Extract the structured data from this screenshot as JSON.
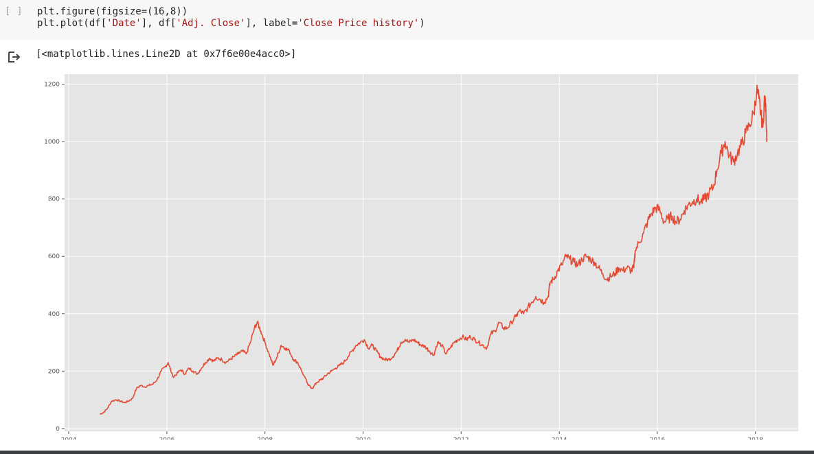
{
  "cell": {
    "brackets": "[ ]",
    "code_line1": "plt.figure(figsize=(16,8))",
    "code_line2_prefix": "plt.plot(df[",
    "code_line2_str1": "'Date'",
    "code_line2_mid1": "], df[",
    "code_line2_str2": "'Adj. Close'",
    "code_line2_mid2": "], label=",
    "code_line2_str3": "'Close Price history'",
    "code_line2_suffix": ")",
    "output_icon": "output-arrow-icon",
    "output_text": "[<matplotlib.lines.Line2D at 0x7f6e00e4acc0>]"
  },
  "colors": {
    "line": "#e24a33",
    "plot_background": "#e5e5e5",
    "grid": "#ffffff",
    "code_string": "#a31515"
  },
  "chart_data": {
    "type": "line",
    "title": "",
    "xlabel": "",
    "ylabel": "",
    "grid": true,
    "xlim": [
      "2003-12-01",
      "2018-11-15"
    ],
    "ylim": [
      -10,
      1235
    ],
    "x_ticks": [
      "2004",
      "2006",
      "2008",
      "2010",
      "2012",
      "2014",
      "2016",
      "2018"
    ],
    "y_ticks": [
      0,
      200,
      400,
      600,
      800,
      1000,
      1200
    ],
    "series": [
      {
        "x": [
          "2004-08-19",
          "2004-09-15",
          "2004-10-15",
          "2004-11-15",
          "2004-12-20",
          "2005-01-20",
          "2005-02-20",
          "2005-03-20",
          "2005-04-20",
          "2005-05-20",
          "2005-06-20",
          "2005-07-20",
          "2005-08-20",
          "2005-09-20",
          "2005-10-20",
          "2005-11-20",
          "2005-12-20",
          "2006-01-10",
          "2006-02-15",
          "2006-03-15",
          "2006-04-15",
          "2006-05-15",
          "2006-06-15",
          "2006-07-15",
          "2006-08-15",
          "2006-09-15",
          "2006-10-15",
          "2006-11-15",
          "2006-12-15",
          "2007-01-15",
          "2007-02-15",
          "2007-03-15",
          "2007-04-15",
          "2007-05-15",
          "2007-06-15",
          "2007-07-15",
          "2007-08-15",
          "2007-09-15",
          "2007-10-15",
          "2007-11-05",
          "2007-12-01",
          "2008-01-01",
          "2008-02-01",
          "2008-03-01",
          "2008-04-01",
          "2008-05-01",
          "2008-06-01",
          "2008-07-01",
          "2008-08-01",
          "2008-09-01",
          "2008-10-01",
          "2008-11-20",
          "2008-12-20",
          "2009-01-20",
          "2009-02-20",
          "2009-03-10",
          "2009-04-10",
          "2009-05-10",
          "2009-06-10",
          "2009-07-10",
          "2009-08-10",
          "2009-09-10",
          "2009-10-10",
          "2009-11-10",
          "2009-12-10",
          "2010-01-10",
          "2010-02-10",
          "2010-03-10",
          "2010-04-10",
          "2010-05-10",
          "2010-06-10",
          "2010-07-10",
          "2010-08-10",
          "2010-09-10",
          "2010-10-10",
          "2010-11-10",
          "2010-12-10",
          "2011-01-10",
          "2011-02-10",
          "2011-03-10",
          "2011-04-10",
          "2011-05-10",
          "2011-06-10",
          "2011-07-10",
          "2011-08-10",
          "2011-09-10",
          "2011-10-10",
          "2011-11-10",
          "2011-12-10",
          "2012-01-10",
          "2012-02-10",
          "2012-03-10",
          "2012-04-10",
          "2012-05-10",
          "2012-06-10",
          "2012-07-10",
          "2012-08-10",
          "2012-09-10",
          "2012-10-10",
          "2012-11-10",
          "2012-12-10",
          "2013-01-10",
          "2013-02-10",
          "2013-03-10",
          "2013-04-10",
          "2013-05-10",
          "2013-06-10",
          "2013-07-10",
          "2013-08-10",
          "2013-09-10",
          "2013-10-10",
          "2013-10-25",
          "2013-11-20",
          "2013-12-20",
          "2014-01-20",
          "2014-02-20",
          "2014-03-20",
          "2014-04-20",
          "2014-05-20",
          "2014-06-20",
          "2014-07-20",
          "2014-08-20",
          "2014-09-20",
          "2014-10-20",
          "2014-11-20",
          "2014-12-20",
          "2015-01-20",
          "2015-02-20",
          "2015-03-20",
          "2015-04-20",
          "2015-05-20",
          "2015-06-20",
          "2015-07-10",
          "2015-07-20",
          "2015-08-20",
          "2015-09-20",
          "2015-10-20",
          "2015-11-20",
          "2015-12-20",
          "2016-01-20",
          "2016-02-20",
          "2016-03-20",
          "2016-04-20",
          "2016-05-20",
          "2016-06-20",
          "2016-07-20",
          "2016-08-20",
          "2016-09-20",
          "2016-10-20",
          "2016-11-20",
          "2016-12-20",
          "2017-01-20",
          "2017-02-20",
          "2017-03-20",
          "2017-04-20",
          "2017-05-20",
          "2017-06-20",
          "2017-07-20",
          "2017-08-20",
          "2017-09-20",
          "2017-10-20",
          "2017-11-20",
          "2017-12-20",
          "2018-01-10",
          "2018-01-26",
          "2018-02-08",
          "2018-02-25",
          "2018-03-10",
          "2018-03-20",
          "2018-03-27"
        ],
        "y": [
          50,
          55,
          70,
          95,
          100,
          95,
          90,
          95,
          105,
          140,
          150,
          145,
          150,
          155,
          170,
          200,
          215,
          230,
          180,
          190,
          205,
          190,
          210,
          200,
          190,
          210,
          230,
          245,
          235,
          245,
          240,
          230,
          240,
          250,
          260,
          270,
          260,
          300,
          350,
          370,
          340,
          300,
          260,
          220,
          250,
          290,
          280,
          270,
          240,
          230,
          200,
          150,
          140,
          160,
          170,
          175,
          190,
          200,
          210,
          220,
          230,
          250,
          270,
          290,
          300,
          310,
          280,
          290,
          270,
          250,
          240,
          240,
          250,
          270,
          300,
          310,
          300,
          310,
          300,
          290,
          285,
          270,
          255,
          300,
          290,
          260,
          280,
          300,
          310,
          320,
          310,
          320,
          310,
          300,
          290,
          280,
          330,
          340,
          370,
          350,
          350,
          370,
          390,
          410,
          400,
          420,
          440,
          460,
          450,
          440,
          460,
          510,
          520,
          550,
          570,
          600,
          590,
          580,
          570,
          590,
          600,
          590,
          580,
          560,
          540,
          520,
          530,
          540,
          560,
          550,
          560,
          550,
          560,
          620,
          650,
          680,
          720,
          750,
          770,
          760,
          720,
          730,
          740,
          720,
          730,
          760,
          780,
          790,
          800,
          790,
          800,
          820,
          840,
          900,
          960,
          1000,
          950,
          930,
          960,
          990,
          1030,
          1060,
          1100,
          1180,
          1150,
          1100,
          1050,
          1160,
          1100,
          1010
        ]
      }
    ]
  }
}
